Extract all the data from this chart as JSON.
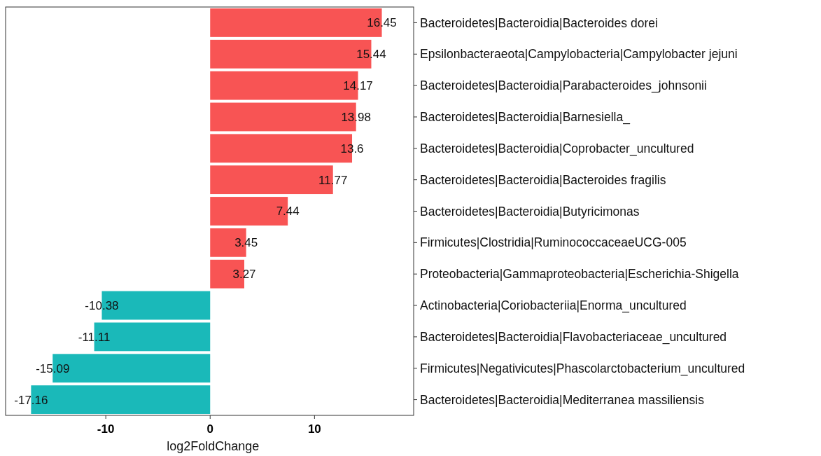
{
  "chart_data": {
    "type": "bar",
    "orientation": "horizontal",
    "xlabel": "log2FoldChange",
    "categories": [
      "Bacteroidetes|Bacteroidia|Bacteroides dorei",
      "Epsilonbacteraeota|Campylobacteria|Campylobacter jejuni",
      "Bacteroidetes|Bacteroidia|Parabacteroides_johnsonii",
      "Bacteroidetes|Bacteroidia|Barnesiella_",
      "Bacteroidetes|Bacteroidia|Coprobacter_uncultured",
      "Bacteroidetes|Bacteroidia|Bacteroides fragilis",
      "Bacteroidetes|Bacteroidia|Butyricimonas",
      "Firmicutes|Clostridia|RuminococcaceaeUCG-005",
      "Proteobacteria|Gammaproteobacteria|Escherichia-Shigella",
      "Actinobacteria|Coriobacteriia|Enorma_uncultured",
      "Bacteroidetes|Bacteroidia|Flavobacteriaceae_uncultured",
      "Firmicutes|Negativicutes|Phascolarctobacterium_uncultured",
      "Bacteroidetes|Bacteroidia|Mediterranea massiliensis"
    ],
    "values": [
      16.45,
      15.44,
      14.17,
      13.98,
      13.6,
      11.77,
      7.44,
      3.45,
      3.27,
      -10.38,
      -11.11,
      -15.09,
      -17.16
    ],
    "colors": [
      "#f85454",
      "#f85454",
      "#f85454",
      "#f85454",
      "#f85454",
      "#f85454",
      "#f85454",
      "#f85454",
      "#f85454",
      "#1ab9b9",
      "#1ab9b9",
      "#1ab9b9",
      "#1ab9b9"
    ],
    "xlim": [
      -19.6,
      19.5
    ],
    "xticks": [
      -10,
      0,
      10
    ],
    "data_labels": true,
    "grid": false
  }
}
